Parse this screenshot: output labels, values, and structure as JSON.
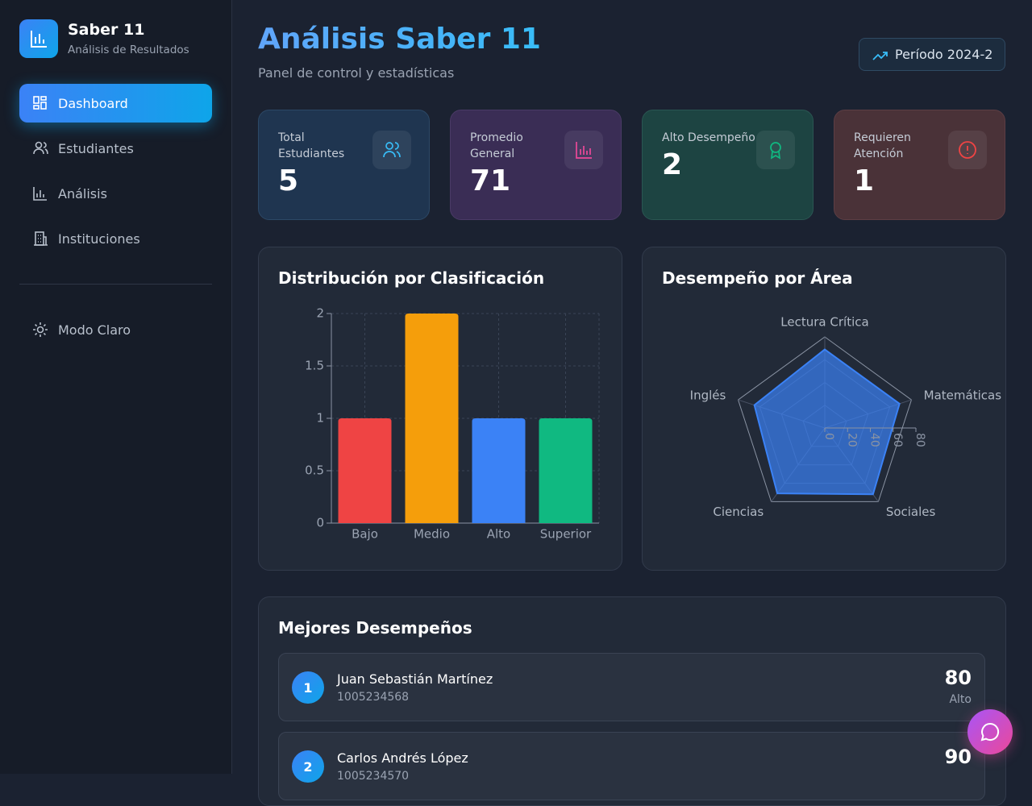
{
  "sidebar": {
    "brand": {
      "title": "Saber 11",
      "subtitle": "Análisis de Resultados"
    },
    "nav": [
      "Dashboard",
      "Estudiantes",
      "Análisis",
      "Instituciones"
    ],
    "theme_toggle": "Modo Claro"
  },
  "header": {
    "title": "Análisis Saber 11",
    "subtitle": "Panel de control y estadísticas",
    "period": "Período 2024-2"
  },
  "stats": [
    {
      "label": "Total Estudiantes",
      "value": 5
    },
    {
      "label": "Promedio General",
      "value": 71
    },
    {
      "label": "Alto Desempeño",
      "value": 2
    },
    {
      "label": "Requieren Atención",
      "value": 1
    }
  ],
  "chart_data": [
    {
      "type": "bar",
      "title": "Distribución por Clasificación",
      "categories": [
        "Bajo",
        "Medio",
        "Alto",
        "Superior"
      ],
      "values": [
        1,
        2,
        1,
        1
      ],
      "colors": [
        "#ef4444",
        "#f59e0b",
        "#3b82f6",
        "#10b981"
      ],
      "ylim": [
        0,
        2
      ],
      "yticks": [
        0,
        0.5,
        1,
        1.5,
        2
      ],
      "grid": true
    },
    {
      "type": "radar",
      "title": "Desempeño por Área",
      "categories": [
        "Lectura Crítica",
        "Matemáticas",
        "Sociales",
        "Ciencias",
        "Inglés"
      ],
      "values": [
        69,
        69,
        72,
        71,
        65
      ],
      "color": "#3b82f6",
      "rlim": [
        0,
        80
      ],
      "rticks": [
        0,
        20,
        40,
        60,
        80
      ],
      "grid": true
    }
  ],
  "top_performers": {
    "title": "Mejores Desempeños",
    "items": [
      {
        "rank": 1,
        "name": "Juan Sebastián Martínez",
        "id": "1005234568",
        "score": 80,
        "level": "Alto"
      },
      {
        "rank": 2,
        "name": "Carlos Andrés López",
        "id": "1005234570",
        "score": 90
      }
    ]
  }
}
